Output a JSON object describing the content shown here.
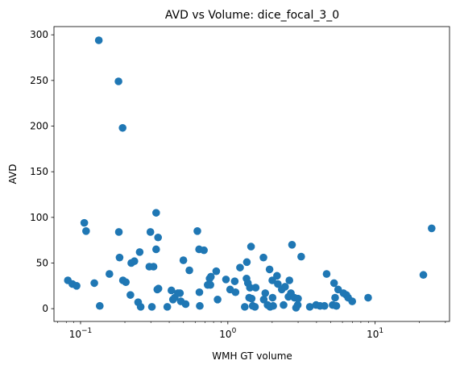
{
  "chart_data": {
    "type": "scatter",
    "title": "AVD vs Volume: dice_focal_3_0",
    "xlabel": "WMH GT volume",
    "ylabel": "AVD",
    "x_scale": "log",
    "xlim": [
      0.066,
      32
    ],
    "ylim": [
      -14,
      309
    ],
    "x_ticks": [
      {
        "value": 0.1,
        "base": "10",
        "exp": "−1"
      },
      {
        "value": 1,
        "base": "10",
        "exp": "0"
      },
      {
        "value": 10,
        "base": "10",
        "exp": "1"
      }
    ],
    "y_ticks": [
      {
        "value": 0,
        "label": "0"
      },
      {
        "value": 50,
        "label": "50"
      },
      {
        "value": 100,
        "label": "100"
      },
      {
        "value": 150,
        "label": "150"
      },
      {
        "value": 200,
        "label": "200"
      },
      {
        "value": 250,
        "label": "250"
      },
      {
        "value": 300,
        "label": "300"
      }
    ],
    "grid": false,
    "marker_color": "#1f77b4",
    "points": [
      {
        "x": 0.082,
        "y": 31
      },
      {
        "x": 0.088,
        "y": 27
      },
      {
        "x": 0.094,
        "y": 25
      },
      {
        "x": 0.106,
        "y": 94
      },
      {
        "x": 0.109,
        "y": 85
      },
      {
        "x": 0.124,
        "y": 28
      },
      {
        "x": 0.133,
        "y": 294
      },
      {
        "x": 0.135,
        "y": 3
      },
      {
        "x": 0.157,
        "y": 38
      },
      {
        "x": 0.181,
        "y": 249
      },
      {
        "x": 0.182,
        "y": 84
      },
      {
        "x": 0.184,
        "y": 56
      },
      {
        "x": 0.193,
        "y": 198
      },
      {
        "x": 0.194,
        "y": 31
      },
      {
        "x": 0.203,
        "y": 29
      },
      {
        "x": 0.218,
        "y": 15
      },
      {
        "x": 0.221,
        "y": 50
      },
      {
        "x": 0.232,
        "y": 52
      },
      {
        "x": 0.246,
        "y": 7
      },
      {
        "x": 0.252,
        "y": 62
      },
      {
        "x": 0.256,
        "y": 2
      },
      {
        "x": 0.293,
        "y": 46
      },
      {
        "x": 0.298,
        "y": 84
      },
      {
        "x": 0.305,
        "y": 2
      },
      {
        "x": 0.313,
        "y": 46
      },
      {
        "x": 0.326,
        "y": 105
      },
      {
        "x": 0.326,
        "y": 65
      },
      {
        "x": 0.332,
        "y": 21
      },
      {
        "x": 0.336,
        "y": 78
      },
      {
        "x": 0.338,
        "y": 22
      },
      {
        "x": 0.388,
        "y": 2
      },
      {
        "x": 0.414,
        "y": 20
      },
      {
        "x": 0.424,
        "y": 10
      },
      {
        "x": 0.436,
        "y": 12
      },
      {
        "x": 0.458,
        "y": 17
      },
      {
        "x": 0.473,
        "y": 17
      },
      {
        "x": 0.48,
        "y": 8
      },
      {
        "x": 0.499,
        "y": 53
      },
      {
        "x": 0.517,
        "y": 5
      },
      {
        "x": 0.548,
        "y": 42
      },
      {
        "x": 0.621,
        "y": 85
      },
      {
        "x": 0.638,
        "y": 65
      },
      {
        "x": 0.641,
        "y": 18
      },
      {
        "x": 0.645,
        "y": 3
      },
      {
        "x": 0.688,
        "y": 64
      },
      {
        "x": 0.73,
        "y": 26
      },
      {
        "x": 0.752,
        "y": 33
      },
      {
        "x": 0.761,
        "y": 26
      },
      {
        "x": 0.767,
        "y": 35
      },
      {
        "x": 0.834,
        "y": 41
      },
      {
        "x": 0.852,
        "y": 10
      },
      {
        "x": 0.971,
        "y": 32
      },
      {
        "x": 1.036,
        "y": 21
      },
      {
        "x": 1.114,
        "y": 30
      },
      {
        "x": 1.127,
        "y": 18
      },
      {
        "x": 1.21,
        "y": 45
      },
      {
        "x": 1.303,
        "y": 2
      },
      {
        "x": 1.339,
        "y": 33
      },
      {
        "x": 1.346,
        "y": 51
      },
      {
        "x": 1.368,
        "y": 28
      },
      {
        "x": 1.395,
        "y": 12
      },
      {
        "x": 1.413,
        "y": 23
      },
      {
        "x": 1.437,
        "y": 68
      },
      {
        "x": 1.451,
        "y": 11
      },
      {
        "x": 1.475,
        "y": 3
      },
      {
        "x": 1.528,
        "y": 2
      },
      {
        "x": 1.545,
        "y": 23
      },
      {
        "x": 1.745,
        "y": 56
      },
      {
        "x": 1.753,
        "y": 10
      },
      {
        "x": 1.795,
        "y": 17
      },
      {
        "x": 1.862,
        "y": 4
      },
      {
        "x": 1.92,
        "y": 43
      },
      {
        "x": 1.937,
        "y": 2
      },
      {
        "x": 2.004,
        "y": 31
      },
      {
        "x": 2.012,
        "y": 12
      },
      {
        "x": 2.031,
        "y": 3
      },
      {
        "x": 2.157,
        "y": 36
      },
      {
        "x": 2.186,
        "y": 27
      },
      {
        "x": 2.324,
        "y": 21
      },
      {
        "x": 2.39,
        "y": 4
      },
      {
        "x": 2.446,
        "y": 24
      },
      {
        "x": 2.579,
        "y": 13
      },
      {
        "x": 2.617,
        "y": 31
      },
      {
        "x": 2.68,
        "y": 17
      },
      {
        "x": 2.728,
        "y": 70
      },
      {
        "x": 2.828,
        "y": 12
      },
      {
        "x": 2.904,
        "y": 1
      },
      {
        "x": 2.981,
        "y": 4
      },
      {
        "x": 2.996,
        "y": 11
      },
      {
        "x": 3.148,
        "y": 57
      },
      {
        "x": 3.602,
        "y": 2
      },
      {
        "x": 3.972,
        "y": 4
      },
      {
        "x": 4.228,
        "y": 3
      },
      {
        "x": 4.53,
        "y": 3
      },
      {
        "x": 4.685,
        "y": 38
      },
      {
        "x": 5.148,
        "y": 4
      },
      {
        "x": 5.262,
        "y": 28
      },
      {
        "x": 5.351,
        "y": 12
      },
      {
        "x": 5.455,
        "y": 3
      },
      {
        "x": 5.607,
        "y": 21
      },
      {
        "x": 6.098,
        "y": 17
      },
      {
        "x": 6.376,
        "y": 15
      },
      {
        "x": 6.559,
        "y": 12
      },
      {
        "x": 6.991,
        "y": 8
      },
      {
        "x": 8.964,
        "y": 12
      },
      {
        "x": 21.257,
        "y": 37
      },
      {
        "x": 24.203,
        "y": 88
      }
    ]
  }
}
